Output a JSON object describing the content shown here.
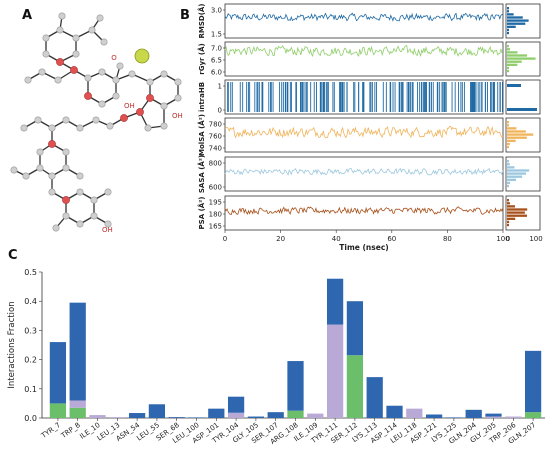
{
  "panels": {
    "a_label": "A",
    "b_label": "B",
    "c_label": "C"
  },
  "molecule": {
    "oh_labels": [
      "OH",
      "OH",
      "OH"
    ],
    "o_label": "O"
  },
  "chart_data": [
    {
      "type": "line",
      "panel": "B",
      "xlabel": "Time (nsec)",
      "xlim": [
        0,
        100
      ],
      "x_ticks": [
        0,
        20,
        40,
        60,
        80,
        100
      ],
      "hist_ticks": [
        0,
        100
      ],
      "subplots": [
        {
          "ylabel": "RMSD(Å)",
          "yticks": [
            "3.0",
            "1.5"
          ],
          "ylim": [
            1.2,
            3.6
          ],
          "mean": 2.7,
          "amp": 0.35,
          "color": "#1f6aa5"
        },
        {
          "ylabel": "rGyr (Å)",
          "yticks": [
            "7.0",
            "6.5",
            "6.0"
          ],
          "ylim": [
            5.8,
            7.3
          ],
          "mean": 6.95,
          "amp": 0.28,
          "color": "#8fce6a"
        },
        {
          "ylabel": "intraHB",
          "yticks": [
            "1",
            "0"
          ],
          "ylim": [
            0,
            1
          ],
          "mean": 0.5,
          "amp": 0.5,
          "color": "#1f6aa5"
        },
        {
          "ylabel": "MolSA (Å²)",
          "yticks": [
            "780",
            "760",
            "740"
          ],
          "ylim": [
            735,
            785
          ],
          "mean": 765,
          "amp": 10,
          "color": "#f0b45a"
        },
        {
          "ylabel": "SASA (Å²)",
          "yticks": [
            "800",
            "600"
          ],
          "ylim": [
            500,
            1000
          ],
          "mean": 790,
          "amp": 60,
          "color": "#9cc8df"
        },
        {
          "ylabel": "PSA (Å²)",
          "yticks": [
            "195",
            "180",
            "165"
          ],
          "ylim": [
            162,
            200
          ],
          "mean": 184,
          "amp": 5,
          "color": "#a8501a"
        }
      ]
    },
    {
      "type": "bar",
      "panel": "C",
      "ylabel": "Interactions Fraction",
      "ylim": [
        0,
        0.5
      ],
      "yticks": [
        "0.0",
        "0.1",
        "0.2",
        "0.3",
        "0.4",
        "0.5"
      ],
      "categories": [
        "TYR_7",
        "TRP_8",
        "ILE_10",
        "LEU_13",
        "ASN_54",
        "LEU_55",
        "SER_68",
        "LEU_100",
        "ASP_101",
        "TYR_104",
        "GLY_105",
        "SER_107",
        "ARG_108",
        "ILE_109",
        "TYR_111",
        "SER_112",
        "LYS_113",
        "ASP_114",
        "LEU_118",
        "ASP_121",
        "LYS_125",
        "GLN_204",
        "GLY_205",
        "TRP_206",
        "GLN_207"
      ],
      "series": [
        {
          "color": "#6bbf6a",
          "values": [
            0.05,
            0.035,
            0,
            0,
            0,
            0,
            0,
            0,
            0,
            0,
            0,
            0,
            0.025,
            0,
            0,
            0.215,
            0,
            0,
            0,
            0,
            0,
            0,
            0,
            0,
            0.02
          ]
        },
        {
          "color": "#b8a9d6",
          "values": [
            0,
            0.025,
            0.01,
            0.003,
            0,
            0,
            0,
            0,
            0,
            0.018,
            0,
            0,
            0,
            0.015,
            0.32,
            0,
            0,
            0,
            0.032,
            0,
            0,
            0,
            0.005,
            0.005,
            0
          ]
        },
        {
          "color": "#2f66b0",
          "values": [
            0.21,
            0.335,
            0,
            0,
            0.017,
            0.047,
            0.003,
            0.002,
            0.032,
            0.055,
            0.005,
            0.02,
            0.17,
            0,
            0.157,
            0.185,
            0.14,
            0.042,
            0,
            0.012,
            0.002,
            0.028,
            0.01,
            0,
            0.21
          ]
        }
      ]
    }
  ]
}
